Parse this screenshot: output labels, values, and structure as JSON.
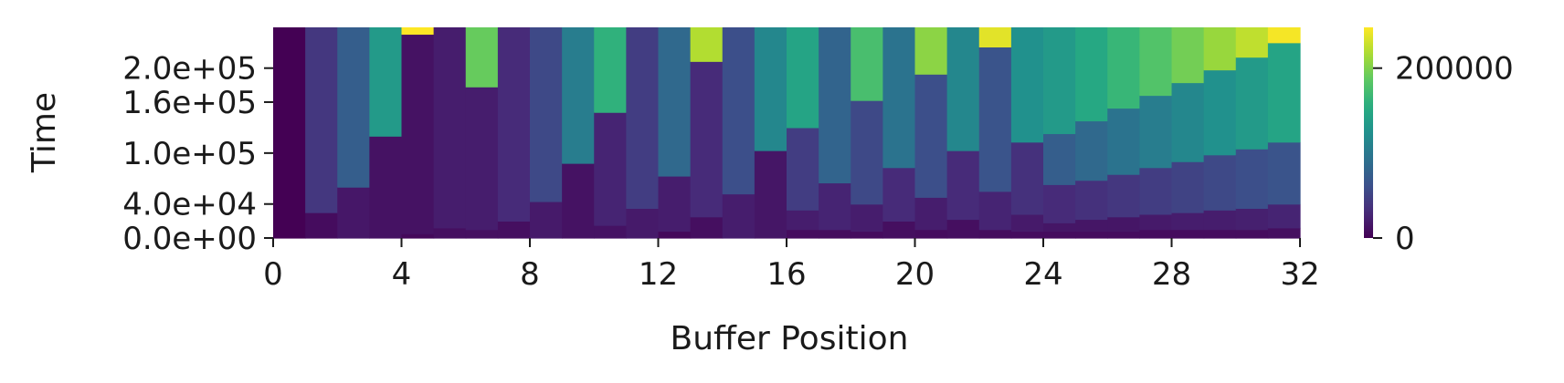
{
  "chart_data": {
    "type": "heatmap",
    "title": "",
    "xlabel": "Buffer Position",
    "ylabel": "Time",
    "xlim": [
      0,
      32
    ],
    "ylim": [
      0,
      248000
    ],
    "x_ticks": [
      0,
      4,
      8,
      12,
      16,
      20,
      24,
      28,
      32
    ],
    "x_tick_labels": [
      "0",
      "4",
      "8",
      "12",
      "16",
      "20",
      "24",
      "28",
      "32"
    ],
    "y_ticks": [
      0,
      40000,
      100000,
      160000,
      200000
    ],
    "y_tick_labels": [
      "0.0e+00",
      "4.0e+04",
      "1.0e+05",
      "1.6e+05",
      "2.0e+05"
    ],
    "colorbar": {
      "min": 0,
      "max": 248000,
      "ticks": [
        0,
        200000
      ],
      "tick_labels": [
        "0",
        "200000"
      ],
      "colormap": "viridis"
    },
    "grid": false,
    "columns": [
      {
        "x": 0,
        "cells": [
          {
            "y0": 0,
            "y1": 248000,
            "value": 0
          }
        ]
      },
      {
        "x": 1,
        "cells": [
          {
            "y0": 0,
            "y1": 30000,
            "value": 8000
          },
          {
            "y0": 30000,
            "y1": 248000,
            "value": 40000
          }
        ]
      },
      {
        "x": 2,
        "cells": [
          {
            "y0": 0,
            "y1": 60000,
            "value": 16000
          },
          {
            "y0": 60000,
            "y1": 248000,
            "value": 75000
          }
        ]
      },
      {
        "x": 3,
        "cells": [
          {
            "y0": 0,
            "y1": 120000,
            "value": 12000
          },
          {
            "y0": 120000,
            "y1": 248000,
            "value": 135000
          }
        ]
      },
      {
        "x": 4,
        "cells": [
          {
            "y0": 0,
            "y1": 5000,
            "value": 5000
          },
          {
            "y0": 5000,
            "y1": 240000,
            "value": 12000
          },
          {
            "y0": 240000,
            "y1": 248000,
            "value": 248000
          }
        ]
      },
      {
        "x": 5,
        "cells": [
          {
            "y0": 0,
            "y1": 12000,
            "value": 10000
          },
          {
            "y0": 12000,
            "y1": 248000,
            "value": 20000
          }
        ]
      },
      {
        "x": 6,
        "cells": [
          {
            "y0": 0,
            "y1": 10000,
            "value": 10000
          },
          {
            "y0": 10000,
            "y1": 178000,
            "value": 20000
          },
          {
            "y0": 178000,
            "y1": 248000,
            "value": 190000
          }
        ]
      },
      {
        "x": 7,
        "cells": [
          {
            "y0": 0,
            "y1": 20000,
            "value": 10000
          },
          {
            "y0": 20000,
            "y1": 248000,
            "value": 30000
          }
        ]
      },
      {
        "x": 8,
        "cells": [
          {
            "y0": 0,
            "y1": 43000,
            "value": 18000
          },
          {
            "y0": 43000,
            "y1": 248000,
            "value": 55000
          }
        ]
      },
      {
        "x": 9,
        "cells": [
          {
            "y0": 0,
            "y1": 88000,
            "value": 12000
          },
          {
            "y0": 88000,
            "y1": 248000,
            "value": 105000
          }
        ]
      },
      {
        "x": 10,
        "cells": [
          {
            "y0": 0,
            "y1": 15000,
            "value": 12000
          },
          {
            "y0": 15000,
            "y1": 148000,
            "value": 25000
          },
          {
            "y0": 148000,
            "y1": 248000,
            "value": 160000
          }
        ]
      },
      {
        "x": 11,
        "cells": [
          {
            "y0": 0,
            "y1": 35000,
            "value": 18000
          },
          {
            "y0": 35000,
            "y1": 248000,
            "value": 45000
          }
        ]
      },
      {
        "x": 12,
        "cells": [
          {
            "y0": 0,
            "y1": 8000,
            "value": 5000
          },
          {
            "y0": 8000,
            "y1": 73000,
            "value": 20000
          },
          {
            "y0": 73000,
            "y1": 248000,
            "value": 85000
          }
        ]
      },
      {
        "x": 13,
        "cells": [
          {
            "y0": 0,
            "y1": 25000,
            "value": 10000
          },
          {
            "y0": 25000,
            "y1": 208000,
            "value": 30000
          },
          {
            "y0": 208000,
            "y1": 248000,
            "value": 220000
          }
        ]
      },
      {
        "x": 14,
        "cells": [
          {
            "y0": 0,
            "y1": 52000,
            "value": 20000
          },
          {
            "y0": 52000,
            "y1": 248000,
            "value": 60000
          }
        ]
      },
      {
        "x": 15,
        "cells": [
          {
            "y0": 0,
            "y1": 103000,
            "value": 15000
          },
          {
            "y0": 103000,
            "y1": 248000,
            "value": 115000
          }
        ]
      },
      {
        "x": 16,
        "cells": [
          {
            "y0": 0,
            "y1": 10000,
            "value": 8000
          },
          {
            "y0": 10000,
            "y1": 33000,
            "value": 20000
          },
          {
            "y0": 33000,
            "y1": 130000,
            "value": 45000
          },
          {
            "y0": 130000,
            "y1": 248000,
            "value": 145000
          }
        ]
      },
      {
        "x": 17,
        "cells": [
          {
            "y0": 0,
            "y1": 10000,
            "value": 8000
          },
          {
            "y0": 10000,
            "y1": 65000,
            "value": 25000
          },
          {
            "y0": 65000,
            "y1": 248000,
            "value": 80000
          }
        ]
      },
      {
        "x": 18,
        "cells": [
          {
            "y0": 0,
            "y1": 8000,
            "value": 8000
          },
          {
            "y0": 8000,
            "y1": 40000,
            "value": 20000
          },
          {
            "y0": 40000,
            "y1": 162000,
            "value": 55000
          },
          {
            "y0": 162000,
            "y1": 248000,
            "value": 175000
          }
        ]
      },
      {
        "x": 19,
        "cells": [
          {
            "y0": 0,
            "y1": 20000,
            "value": 10000
          },
          {
            "y0": 20000,
            "y1": 83000,
            "value": 30000
          },
          {
            "y0": 83000,
            "y1": 248000,
            "value": 95000
          }
        ]
      },
      {
        "x": 20,
        "cells": [
          {
            "y0": 0,
            "y1": 10000,
            "value": 8000
          },
          {
            "y0": 10000,
            "y1": 48000,
            "value": 20000
          },
          {
            "y0": 48000,
            "y1": 193000,
            "value": 60000
          },
          {
            "y0": 193000,
            "y1": 248000,
            "value": 205000
          }
        ]
      },
      {
        "x": 21,
        "cells": [
          {
            "y0": 0,
            "y1": 22000,
            "value": 10000
          },
          {
            "y0": 22000,
            "y1": 103000,
            "value": 30000
          },
          {
            "y0": 103000,
            "y1": 248000,
            "value": 115000
          }
        ]
      },
      {
        "x": 22,
        "cells": [
          {
            "y0": 0,
            "y1": 10000,
            "value": 8000
          },
          {
            "y0": 10000,
            "y1": 55000,
            "value": 25000
          },
          {
            "y0": 55000,
            "y1": 225000,
            "value": 65000
          },
          {
            "y0": 225000,
            "y1": 248000,
            "value": 238000
          }
        ]
      },
      {
        "x": 23,
        "cells": [
          {
            "y0": 0,
            "y1": 8000,
            "value": 8000
          },
          {
            "y0": 8000,
            "y1": 28000,
            "value": 18000
          },
          {
            "y0": 28000,
            "y1": 113000,
            "value": 35000
          },
          {
            "y0": 113000,
            "y1": 248000,
            "value": 125000
          }
        ]
      },
      {
        "x": 24,
        "cells": [
          {
            "y0": 0,
            "y1": 8000,
            "value": 8000
          },
          {
            "y0": 8000,
            "y1": 18000,
            "value": 15000
          },
          {
            "y0": 18000,
            "y1": 63000,
            "value": 30000
          },
          {
            "y0": 63000,
            "y1": 123000,
            "value": 75000
          },
          {
            "y0": 123000,
            "y1": 248000,
            "value": 135000
          }
        ]
      },
      {
        "x": 25,
        "cells": [
          {
            "y0": 0,
            "y1": 8000,
            "value": 8000
          },
          {
            "y0": 8000,
            "y1": 22000,
            "value": 15000
          },
          {
            "y0": 22000,
            "y1": 68000,
            "value": 35000
          },
          {
            "y0": 68000,
            "y1": 138000,
            "value": 85000
          },
          {
            "y0": 138000,
            "y1": 248000,
            "value": 150000
          }
        ]
      },
      {
        "x": 26,
        "cells": [
          {
            "y0": 0,
            "y1": 8000,
            "value": 8000
          },
          {
            "y0": 8000,
            "y1": 25000,
            "value": 15000
          },
          {
            "y0": 25000,
            "y1": 75000,
            "value": 40000
          },
          {
            "y0": 75000,
            "y1": 153000,
            "value": 95000
          },
          {
            "y0": 153000,
            "y1": 248000,
            "value": 165000
          }
        ]
      },
      {
        "x": 27,
        "cells": [
          {
            "y0": 0,
            "y1": 10000,
            "value": 8000
          },
          {
            "y0": 10000,
            "y1": 28000,
            "value": 18000
          },
          {
            "y0": 28000,
            "y1": 83000,
            "value": 45000
          },
          {
            "y0": 83000,
            "y1": 168000,
            "value": 105000
          },
          {
            "y0": 168000,
            "y1": 248000,
            "value": 180000
          }
        ]
      },
      {
        "x": 28,
        "cells": [
          {
            "y0": 0,
            "y1": 10000,
            "value": 8000
          },
          {
            "y0": 10000,
            "y1": 30000,
            "value": 20000
          },
          {
            "y0": 30000,
            "y1": 90000,
            "value": 50000
          },
          {
            "y0": 90000,
            "y1": 183000,
            "value": 115000
          },
          {
            "y0": 183000,
            "y1": 248000,
            "value": 195000
          }
        ]
      },
      {
        "x": 29,
        "cells": [
          {
            "y0": 0,
            "y1": 10000,
            "value": 8000
          },
          {
            "y0": 10000,
            "y1": 33000,
            "value": 20000
          },
          {
            "y0": 33000,
            "y1": 98000,
            "value": 55000
          },
          {
            "y0": 98000,
            "y1": 198000,
            "value": 125000
          },
          {
            "y0": 198000,
            "y1": 248000,
            "value": 210000
          }
        ]
      },
      {
        "x": 30,
        "cells": [
          {
            "y0": 0,
            "y1": 10000,
            "value": 8000
          },
          {
            "y0": 10000,
            "y1": 35000,
            "value": 22000
          },
          {
            "y0": 35000,
            "y1": 105000,
            "value": 60000
          },
          {
            "y0": 105000,
            "y1": 213000,
            "value": 135000
          },
          {
            "y0": 213000,
            "y1": 248000,
            "value": 225000
          }
        ]
      },
      {
        "x": 31,
        "cells": [
          {
            "y0": 0,
            "y1": 12000,
            "value": 10000
          },
          {
            "y0": 12000,
            "y1": 40000,
            "value": 25000
          },
          {
            "y0": 40000,
            "y1": 113000,
            "value": 65000
          },
          {
            "y0": 113000,
            "y1": 230000,
            "value": 145000
          },
          {
            "y0": 230000,
            "y1": 248000,
            "value": 245000
          }
        ]
      }
    ]
  }
}
